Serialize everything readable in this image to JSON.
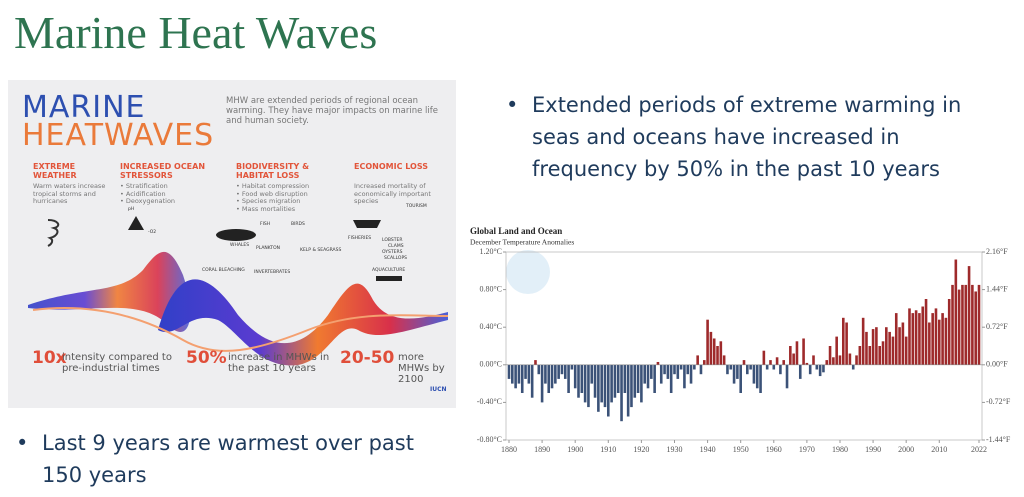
{
  "title": "Marine Heat Waves",
  "bullets": [
    "Extended periods of extreme warming in seas and oceans have increased in frequency by 50% in the past 10 years",
    "Last 9 years are warmest over past 150 years"
  ],
  "infographic": {
    "title_1": "MARINE",
    "title_2": "HEATWAVES",
    "intro": "MHW are extended periods of regional ocean warming. They have major impacts on marine life and human society.",
    "columns": [
      {
        "heading": "EXTREME WEATHER",
        "items": [
          "Warm waters increase tropical storms and hurricanes"
        ]
      },
      {
        "heading": "INCREASED OCEAN STRESSORS",
        "items": [
          "• Stratification",
          "• Acidification",
          "• Deoxygenation"
        ]
      },
      {
        "heading": "BIODIVERSITY & HABITAT LOSS",
        "items": [
          "• Habitat compression",
          "• Food web disruption",
          "• Species migration",
          "• Mass mortalities"
        ]
      },
      {
        "heading": "ECONOMIC LOSS",
        "items": [
          "Increased mortality of economically important species"
        ]
      }
    ],
    "labels": [
      "pH",
      "-O2",
      "WHALES",
      "FISH",
      "BIRDS",
      "PLANKTON",
      "KELP & SEAGRASS",
      "CORAL BLEACHING",
      "INVERTEBRATES",
      "FISHERIES",
      "TOURISM",
      "LOBSTER",
      "CLAMS",
      "OYSTERS",
      "SCALLOPS",
      "AQUACULTURE"
    ],
    "stats": [
      {
        "figure": "10x",
        "text": "intensity compared to pre-industrial times"
      },
      {
        "figure": "50%",
        "text": "increase in MHWs in the past 10 years"
      },
      {
        "figure": "20-50",
        "text": "more MHWs by 2100"
      }
    ],
    "logo": "IUCN"
  },
  "chart_data": {
    "type": "bar",
    "title": "Global Land and Ocean",
    "subtitle": "December Temperature Anomalies",
    "x": [
      1880,
      1881,
      1882,
      1883,
      1884,
      1885,
      1886,
      1887,
      1888,
      1889,
      1890,
      1891,
      1892,
      1893,
      1894,
      1895,
      1896,
      1897,
      1898,
      1899,
      1900,
      1901,
      1902,
      1903,
      1904,
      1905,
      1906,
      1907,
      1908,
      1909,
      1910,
      1911,
      1912,
      1913,
      1914,
      1915,
      1916,
      1917,
      1918,
      1919,
      1920,
      1921,
      1922,
      1923,
      1924,
      1925,
      1926,
      1927,
      1928,
      1929,
      1930,
      1931,
      1932,
      1933,
      1934,
      1935,
      1936,
      1937,
      1938,
      1939,
      1940,
      1941,
      1942,
      1943,
      1944,
      1945,
      1946,
      1947,
      1948,
      1949,
      1950,
      1951,
      1952,
      1953,
      1954,
      1955,
      1956,
      1957,
      1958,
      1959,
      1960,
      1961,
      1962,
      1963,
      1964,
      1965,
      1966,
      1967,
      1968,
      1969,
      1970,
      1971,
      1972,
      1973,
      1974,
      1975,
      1976,
      1977,
      1978,
      1979,
      1980,
      1981,
      1982,
      1983,
      1984,
      1985,
      1986,
      1987,
      1988,
      1989,
      1990,
      1991,
      1992,
      1993,
      1994,
      1995,
      1996,
      1997,
      1998,
      1999,
      2000,
      2001,
      2002,
      2003,
      2004,
      2005,
      2006,
      2007,
      2008,
      2009,
      2010,
      2011,
      2012,
      2013,
      2014,
      2015,
      2016,
      2017,
      2018,
      2019,
      2020,
      2021,
      2022
    ],
    "values": [
      -0.15,
      -0.2,
      -0.25,
      -0.2,
      -0.3,
      -0.15,
      -0.2,
      -0.35,
      0.05,
      -0.1,
      -0.4,
      -0.2,
      -0.3,
      -0.25,
      -0.2,
      -0.15,
      -0.1,
      -0.15,
      -0.3,
      -0.05,
      -0.25,
      -0.35,
      -0.3,
      -0.4,
      -0.45,
      -0.2,
      -0.35,
      -0.5,
      -0.4,
      -0.45,
      -0.55,
      -0.4,
      -0.35,
      -0.3,
      -0.6,
      -0.3,
      -0.55,
      -0.45,
      -0.35,
      -0.3,
      -0.4,
      -0.2,
      -0.25,
      -0.15,
      -0.3,
      0.03,
      -0.2,
      -0.1,
      -0.15,
      -0.3,
      -0.1,
      -0.15,
      -0.05,
      -0.25,
      -0.1,
      -0.2,
      -0.05,
      0.1,
      -0.1,
      0.05,
      0.48,
      0.35,
      0.28,
      0.2,
      0.25,
      0.1,
      -0.1,
      -0.05,
      -0.2,
      -0.15,
      -0.3,
      0.05,
      -0.1,
      -0.05,
      -0.2,
      -0.25,
      -0.3,
      0.15,
      -0.05,
      0.05,
      -0.05,
      0.08,
      -0.1,
      0.05,
      -0.25,
      0.2,
      0.12,
      0.25,
      -0.15,
      0.28,
      0.02,
      -0.1,
      0.1,
      -0.05,
      -0.12,
      -0.08,
      0.05,
      0.2,
      0.08,
      0.3,
      0.1,
      0.5,
      0.45,
      0.12,
      -0.05,
      0.1,
      0.2,
      0.5,
      0.35,
      0.2,
      0.38,
      0.4,
      0.2,
      0.25,
      0.4,
      0.35,
      0.3,
      0.55,
      0.4,
      0.45,
      0.3,
      0.6,
      0.55,
      0.58,
      0.55,
      0.62,
      0.7,
      0.45,
      0.55,
      0.6,
      0.48,
      0.55,
      0.5,
      0.7,
      0.85,
      1.12,
      0.8,
      0.85,
      0.85,
      1.05,
      0.85,
      0.78,
      0.85
    ],
    "colors": {
      "positive": "#9e2a2b",
      "negative": "#3b5278"
    },
    "xlim": [
      1880,
      2022
    ],
    "xticks": [
      1880,
      1890,
      1900,
      1910,
      1920,
      1930,
      1940,
      1950,
      1960,
      1970,
      1980,
      1990,
      2000,
      2010,
      2022
    ],
    "ylim": [
      -0.8,
      1.2
    ],
    "yticks": [
      {
        "value": -0.8,
        "label": "-0.80°C"
      },
      {
        "value": -0.4,
        "label": "-0.40°C"
      },
      {
        "value": 0,
        "label": "0.00°C"
      },
      {
        "value": 0.4,
        "label": "0.40°C"
      },
      {
        "value": 0.8,
        "label": "0.80°C"
      },
      {
        "value": 1.2,
        "label": "1.20°C"
      }
    ],
    "y2lim": [
      -1.44,
      2.16
    ],
    "y2ticks": [
      {
        "value": -1.44,
        "label": "-1.44°F"
      },
      {
        "value": -0.72,
        "label": "-0.72°F"
      },
      {
        "value": 0,
        "label": "0.00°F"
      },
      {
        "value": 0.72,
        "label": "0.72°F"
      },
      {
        "value": 1.44,
        "label": "1.44°F"
      },
      {
        "value": 2.16,
        "label": "2.16°F"
      }
    ],
    "grid": false
  }
}
